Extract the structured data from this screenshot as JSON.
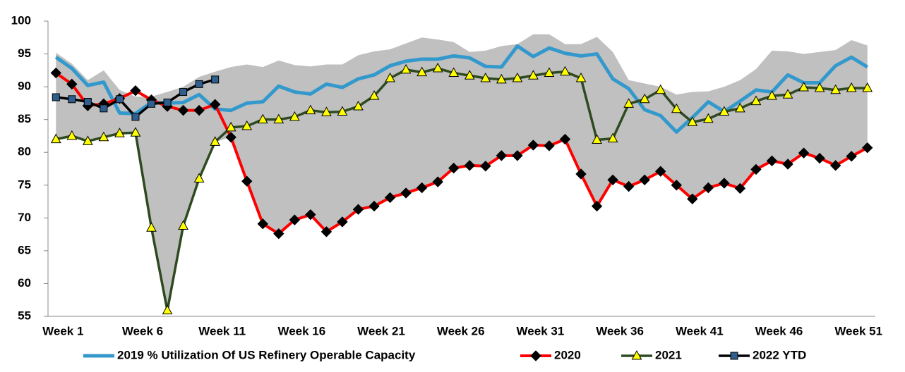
{
  "chart_data": {
    "type": "line",
    "categories": [
      "Week 1",
      null,
      null,
      null,
      null,
      "Week 6",
      null,
      null,
      null,
      null,
      "Week 11",
      null,
      null,
      null,
      null,
      "Week 16",
      null,
      null,
      null,
      null,
      "Week 21",
      null,
      null,
      null,
      null,
      "Week 26",
      null,
      null,
      null,
      null,
      "Week 31",
      null,
      null,
      null,
      null,
      "Week 36",
      null,
      null,
      null,
      null,
      "Week 41",
      null,
      null,
      null,
      null,
      "Week 46",
      null,
      null,
      null,
      null,
      "Week 51",
      null
    ],
    "range": {
      "color": "#c0c0c0",
      "upper": [
        95.2,
        93.5,
        91,
        92.5,
        89.5,
        88.5,
        88.5,
        89.2,
        90,
        91.5,
        92.3,
        93,
        93.4,
        93,
        94,
        93.3,
        93.1,
        93.4,
        93.4,
        94.8,
        95.4,
        95.7,
        96.6,
        97.5,
        97.2,
        96.8,
        95.3,
        95.5,
        96.2,
        96.5,
        98,
        98,
        96.5,
        96.5,
        97.6,
        95.3,
        91,
        90.5,
        90,
        88.8,
        89.2,
        89.3,
        90,
        91,
        92.7,
        95.5,
        95.4,
        95,
        95.3,
        95.6,
        97.1,
        96.3
      ],
      "lower": [
        82,
        82.5,
        81.7,
        82.3,
        82.9,
        83,
        68.5,
        55.9,
        68.8,
        76,
        81.6,
        82.3,
        75.6,
        69.1,
        67.6,
        69.7,
        70.5,
        67.9,
        69.4,
        71.3,
        71.8,
        73.1,
        73.8,
        74.6,
        75.5,
        77.6,
        78,
        77.9,
        79.5,
        79.5,
        81.1,
        81,
        82,
        76.7,
        71.8,
        75.8,
        74.8,
        75.8,
        77.1,
        75,
        72.9,
        74.6,
        75.3,
        74.5,
        77.4,
        78.7,
        78.2,
        79.9,
        79.1,
        78,
        79.4,
        80.7
      ]
    },
    "series": [
      {
        "name": "2019 % Utilization Of US Refinery Operable Capacity",
        "color": "#3399cc",
        "width": 5,
        "marker": "none",
        "values": [
          94.5,
          92.8,
          90.2,
          90.7,
          86,
          85.9,
          87.6,
          87.5,
          87.6,
          88.8,
          86.6,
          86.4,
          87.5,
          87.7,
          90.1,
          89.2,
          88.9,
          90.4,
          89.9,
          91.2,
          91.8,
          93.2,
          93.9,
          94.2,
          94.2,
          94.7,
          94.4,
          93.1,
          93,
          96.2,
          94.6,
          95.9,
          95.1,
          94.7,
          95,
          91.2,
          89.7,
          86.5,
          85.6,
          83.1,
          85.3,
          87.7,
          86.2,
          87.8,
          89.5,
          89.2,
          91.8,
          90.6,
          90.6,
          93.2,
          94.5,
          93
        ]
      },
      {
        "name": "2020",
        "color": "#ff0000",
        "width": 4,
        "marker": "diamond",
        "marker_color": "#000000",
        "values": [
          92.1,
          90.4,
          87.1,
          87.4,
          88.2,
          89.4,
          88,
          87,
          86.4,
          86.4,
          87.3,
          82.3,
          75.6,
          69.1,
          67.6,
          69.7,
          70.5,
          67.9,
          69.4,
          71.3,
          71.8,
          73.1,
          73.8,
          74.6,
          75.5,
          77.6,
          78,
          77.9,
          79.5,
          79.5,
          81.1,
          81,
          82,
          76.7,
          71.8,
          75.8,
          74.8,
          75.8,
          77.1,
          75,
          72.9,
          74.6,
          75.3,
          74.5,
          77.4,
          78.7,
          78.2,
          79.9,
          79.1,
          78,
          79.4,
          80.7
        ]
      },
      {
        "name": "2021",
        "color": "#2e4a20",
        "width": 3.5,
        "marker": "triangle",
        "marker_color": "#ffff00",
        "values": [
          82,
          82.5,
          81.7,
          82.3,
          82.9,
          83,
          68.5,
          55.9,
          68.8,
          76,
          81.6,
          83.8,
          84,
          85,
          85,
          85.4,
          86.4,
          86.1,
          86.2,
          87,
          88.6,
          91.3,
          92.6,
          92.2,
          92.8,
          92.1,
          91.7,
          91.3,
          91.1,
          91.3,
          91.7,
          92.1,
          92.3,
          91.3,
          81.9,
          82.1,
          87.4,
          88.1,
          89.5,
          86.6,
          84.6,
          85.1,
          86.2,
          86.7,
          87.8,
          88.6,
          88.8,
          89.9,
          89.8,
          89.5,
          89.8,
          89.8
        ]
      },
      {
        "name": "2022 YTD",
        "color": "#000000",
        "width": 3.5,
        "marker": "square",
        "marker_color": "#2f5f8f",
        "values": [
          88.4,
          88.1,
          87.7,
          86.7,
          88.1,
          85.4,
          87.4,
          87.6,
          89.2,
          90.4,
          91.1,
          null,
          null,
          null,
          null,
          null,
          null,
          null,
          null,
          null,
          null,
          null,
          null,
          null,
          null,
          null,
          null,
          null,
          null,
          null,
          null,
          null,
          null,
          null,
          null,
          null,
          null,
          null,
          null,
          null,
          null,
          null,
          null,
          null,
          null,
          null,
          null,
          null,
          null,
          null,
          null,
          null
        ]
      }
    ],
    "ylim": [
      55,
      100
    ],
    "yticks": [
      55,
      60,
      65,
      70,
      75,
      80,
      85,
      90,
      95,
      100
    ],
    "grid": false,
    "legend": "bottom"
  }
}
